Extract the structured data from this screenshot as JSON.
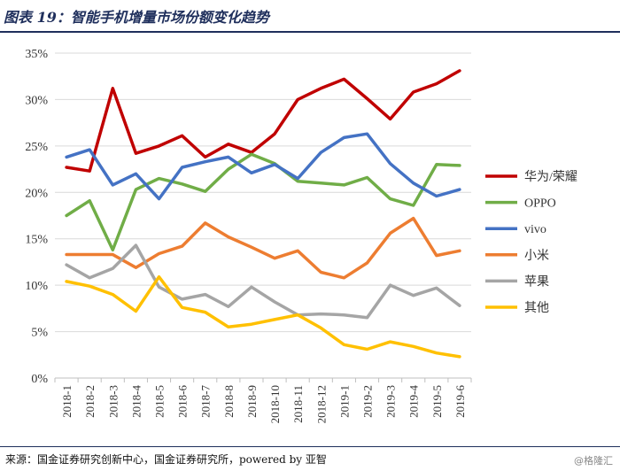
{
  "header": {
    "title": "图表 19：智能手机增量市场份额变化趋势"
  },
  "footer": {
    "source": "来源：国金证券研究创新中心，国金证券研究所，powered by 亚智",
    "watermark": "@格隆汇"
  },
  "colors": {
    "huawei": "#c00000",
    "oppo": "#70ad47",
    "vivo": "#4472c4",
    "xiaomi": "#ed7d31",
    "apple": "#a5a5a5",
    "others": "#ffc000",
    "title": "#1f2f5c",
    "grid": "#d9d9d9"
  },
  "chart_data": {
    "type": "line",
    "title": "",
    "xlabel": "",
    "ylabel": "",
    "ylim": [
      0,
      35
    ],
    "yticks": [
      "0%",
      "5%",
      "10%",
      "15%",
      "20%",
      "25%",
      "30%",
      "35%"
    ],
    "grid": "horizontal",
    "legend": "right",
    "categories": [
      "2018-1",
      "2018-2",
      "2018-3",
      "2018-4",
      "2018-5",
      "2018-6",
      "2018-7",
      "2018-8",
      "2018-9",
      "2018-10",
      "2018-11",
      "2018-12",
      "2019-1",
      "2019-2",
      "2019-3",
      "2019-4",
      "2019-5",
      "2019-6"
    ],
    "series": [
      {
        "name": "华为/荣耀",
        "color": "#c00000",
        "values": [
          22.7,
          22.3,
          31.2,
          24.2,
          25.0,
          26.1,
          23.8,
          25.2,
          24.3,
          26.3,
          30.0,
          31.2,
          32.2,
          30.1,
          27.9,
          30.8,
          31.7,
          33.1
        ]
      },
      {
        "name": "OPPO",
        "color": "#70ad47",
        "values": [
          17.5,
          19.1,
          13.8,
          20.3,
          21.5,
          20.9,
          20.1,
          22.5,
          24.1,
          23.1,
          21.2,
          21.0,
          20.8,
          21.6,
          19.3,
          18.6,
          23.0,
          22.9
        ]
      },
      {
        "name": "vivo",
        "color": "#4472c4",
        "values": [
          23.8,
          24.6,
          20.8,
          22.0,
          19.3,
          22.7,
          23.3,
          23.8,
          22.1,
          23.0,
          21.5,
          24.3,
          25.9,
          26.3,
          23.1,
          21.0,
          19.6,
          20.3
        ]
      },
      {
        "name": "小米",
        "color": "#ed7d31",
        "values": [
          13.3,
          13.3,
          13.3,
          11.9,
          13.4,
          14.2,
          16.7,
          15.2,
          14.1,
          12.9,
          13.7,
          11.4,
          10.8,
          12.4,
          15.6,
          17.2,
          13.2,
          13.7
        ]
      },
      {
        "name": "苹果",
        "color": "#a5a5a5",
        "values": [
          12.2,
          10.8,
          11.8,
          14.3,
          9.8,
          8.5,
          9.0,
          7.7,
          9.8,
          8.2,
          6.8,
          6.9,
          6.8,
          6.5,
          10.0,
          8.9,
          9.7,
          7.8
        ]
      },
      {
        "name": "其他",
        "color": "#ffc000",
        "values": [
          10.4,
          9.9,
          9.0,
          7.2,
          10.9,
          7.6,
          7.1,
          5.5,
          5.8,
          6.3,
          6.8,
          5.4,
          3.6,
          3.1,
          3.9,
          3.4,
          2.7,
          2.3
        ]
      }
    ]
  }
}
